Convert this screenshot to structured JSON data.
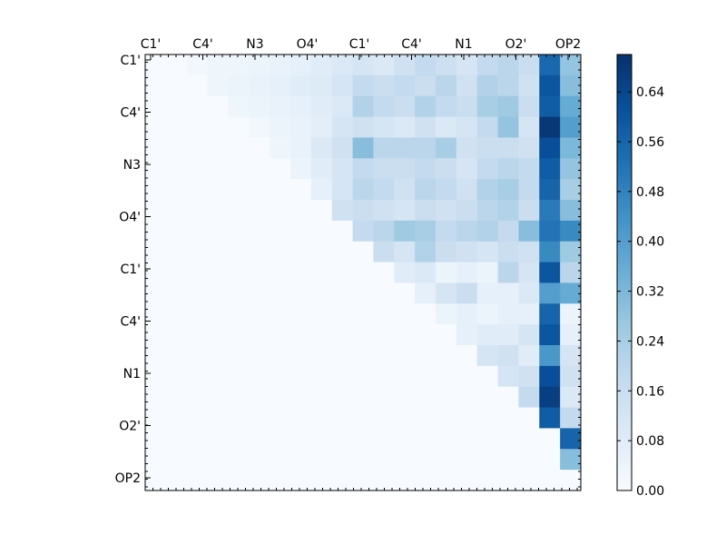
{
  "chart_data": {
    "type": "heatmap",
    "title": "",
    "xlabel": "",
    "ylabel": "",
    "x_tick_labels": [
      "C1'",
      "C4'",
      "N3",
      "O4'",
      "C1'",
      "C4'",
      "N1",
      "O2'",
      "OP2"
    ],
    "y_tick_labels": [
      "C1'",
      "C4'",
      "N3",
      "O4'",
      "C1'",
      "C4'",
      "N1",
      "O2'",
      "OP2"
    ],
    "grid_size": 21,
    "colormap": "Blues",
    "colors": {
      "low": "#f7fbff",
      "mid": "#6baed6",
      "high": "#08306b"
    },
    "value_range": [
      0.0,
      0.7
    ],
    "colorbar": {
      "ticks": [
        0.0,
        0.08,
        0.16,
        0.24,
        0.32,
        0.4,
        0.48,
        0.56,
        0.64
      ],
      "tick_labels": [
        "0.00",
        "0.08",
        "0.16",
        "0.24",
        "0.32",
        "0.40",
        "0.48",
        "0.56",
        "0.64"
      ]
    },
    "values": [
      [
        0.0,
        0.0,
        0.02,
        0.03,
        0.03,
        0.04,
        0.05,
        0.06,
        0.08,
        0.1,
        0.12,
        0.1,
        0.14,
        0.18,
        0.15,
        0.12,
        0.18,
        0.2,
        0.16,
        0.55,
        0.28
      ],
      [
        0.0,
        0.0,
        0.0,
        0.03,
        0.04,
        0.05,
        0.06,
        0.08,
        0.09,
        0.12,
        0.18,
        0.16,
        0.18,
        0.16,
        0.2,
        0.14,
        0.22,
        0.2,
        0.14,
        0.6,
        0.3
      ],
      [
        0.0,
        0.0,
        0.0,
        0.0,
        0.03,
        0.04,
        0.05,
        0.06,
        0.08,
        0.1,
        0.22,
        0.18,
        0.16,
        0.22,
        0.18,
        0.16,
        0.24,
        0.26,
        0.16,
        0.58,
        0.36
      ],
      [
        0.0,
        0.0,
        0.0,
        0.0,
        0.0,
        0.02,
        0.04,
        0.05,
        0.07,
        0.12,
        0.14,
        0.12,
        0.1,
        0.14,
        0.1,
        0.12,
        0.18,
        0.28,
        0.12,
        0.68,
        0.4
      ],
      [
        0.0,
        0.0,
        0.0,
        0.0,
        0.0,
        0.0,
        0.03,
        0.05,
        0.1,
        0.14,
        0.3,
        0.2,
        0.2,
        0.2,
        0.24,
        0.14,
        0.16,
        0.16,
        0.14,
        0.62,
        0.32
      ],
      [
        0.0,
        0.0,
        0.0,
        0.0,
        0.0,
        0.0,
        0.0,
        0.04,
        0.08,
        0.12,
        0.18,
        0.16,
        0.16,
        0.18,
        0.16,
        0.12,
        0.18,
        0.2,
        0.18,
        0.58,
        0.28
      ],
      [
        0.0,
        0.0,
        0.0,
        0.0,
        0.0,
        0.0,
        0.0,
        0.0,
        0.06,
        0.12,
        0.2,
        0.18,
        0.14,
        0.2,
        0.18,
        0.14,
        0.22,
        0.24,
        0.18,
        0.56,
        0.24
      ],
      [
        0.0,
        0.0,
        0.0,
        0.0,
        0.0,
        0.0,
        0.0,
        0.0,
        0.0,
        0.14,
        0.16,
        0.14,
        0.12,
        0.16,
        0.14,
        0.16,
        0.2,
        0.22,
        0.16,
        0.5,
        0.3
      ],
      [
        0.0,
        0.0,
        0.0,
        0.0,
        0.0,
        0.0,
        0.0,
        0.0,
        0.0,
        0.0,
        0.18,
        0.2,
        0.26,
        0.24,
        0.18,
        0.2,
        0.22,
        0.18,
        0.3,
        0.52,
        0.46
      ],
      [
        0.0,
        0.0,
        0.0,
        0.0,
        0.0,
        0.0,
        0.0,
        0.0,
        0.0,
        0.0,
        0.0,
        0.16,
        0.12,
        0.22,
        0.16,
        0.14,
        0.12,
        0.16,
        0.14,
        0.46,
        0.26
      ],
      [
        0.0,
        0.0,
        0.0,
        0.0,
        0.0,
        0.0,
        0.0,
        0.0,
        0.0,
        0.0,
        0.0,
        0.0,
        0.08,
        0.1,
        0.04,
        0.06,
        0.04,
        0.2,
        0.12,
        0.6,
        0.2
      ],
      [
        0.0,
        0.0,
        0.0,
        0.0,
        0.0,
        0.0,
        0.0,
        0.0,
        0.0,
        0.0,
        0.0,
        0.0,
        0.0,
        0.06,
        0.12,
        0.16,
        0.06,
        0.06,
        0.1,
        0.4,
        0.36
      ],
      [
        0.0,
        0.0,
        0.0,
        0.0,
        0.0,
        0.0,
        0.0,
        0.0,
        0.0,
        0.0,
        0.0,
        0.0,
        0.0,
        0.0,
        0.04,
        0.06,
        0.04,
        0.06,
        0.06,
        0.56,
        0.04
      ],
      [
        0.0,
        0.0,
        0.0,
        0.0,
        0.0,
        0.0,
        0.0,
        0.0,
        0.0,
        0.0,
        0.0,
        0.0,
        0.0,
        0.0,
        0.0,
        0.06,
        0.08,
        0.08,
        0.12,
        0.6,
        0.06
      ],
      [
        0.0,
        0.0,
        0.0,
        0.0,
        0.0,
        0.0,
        0.0,
        0.0,
        0.0,
        0.0,
        0.0,
        0.0,
        0.0,
        0.0,
        0.0,
        0.0,
        0.12,
        0.14,
        0.08,
        0.42,
        0.12
      ],
      [
        0.0,
        0.0,
        0.0,
        0.0,
        0.0,
        0.0,
        0.0,
        0.0,
        0.0,
        0.0,
        0.0,
        0.0,
        0.0,
        0.0,
        0.0,
        0.0,
        0.0,
        0.12,
        0.14,
        0.62,
        0.14
      ],
      [
        0.0,
        0.0,
        0.0,
        0.0,
        0.0,
        0.0,
        0.0,
        0.0,
        0.0,
        0.0,
        0.0,
        0.0,
        0.0,
        0.0,
        0.0,
        0.0,
        0.0,
        0.0,
        0.18,
        0.66,
        0.1
      ],
      [
        0.0,
        0.0,
        0.0,
        0.0,
        0.0,
        0.0,
        0.0,
        0.0,
        0.0,
        0.0,
        0.0,
        0.0,
        0.0,
        0.0,
        0.0,
        0.0,
        0.0,
        0.0,
        0.0,
        0.58,
        0.18
      ],
      [
        0.0,
        0.0,
        0.0,
        0.0,
        0.0,
        0.0,
        0.0,
        0.0,
        0.0,
        0.0,
        0.0,
        0.0,
        0.0,
        0.0,
        0.0,
        0.0,
        0.0,
        0.0,
        0.0,
        0.0,
        0.56
      ],
      [
        0.0,
        0.0,
        0.0,
        0.0,
        0.0,
        0.0,
        0.0,
        0.0,
        0.0,
        0.0,
        0.0,
        0.0,
        0.0,
        0.0,
        0.0,
        0.0,
        0.0,
        0.0,
        0.0,
        0.0,
        0.3
      ],
      [
        0.0,
        0.0,
        0.0,
        0.0,
        0.0,
        0.0,
        0.0,
        0.0,
        0.0,
        0.0,
        0.0,
        0.0,
        0.0,
        0.0,
        0.0,
        0.0,
        0.0,
        0.0,
        0.0,
        0.0,
        0.0
      ]
    ]
  }
}
